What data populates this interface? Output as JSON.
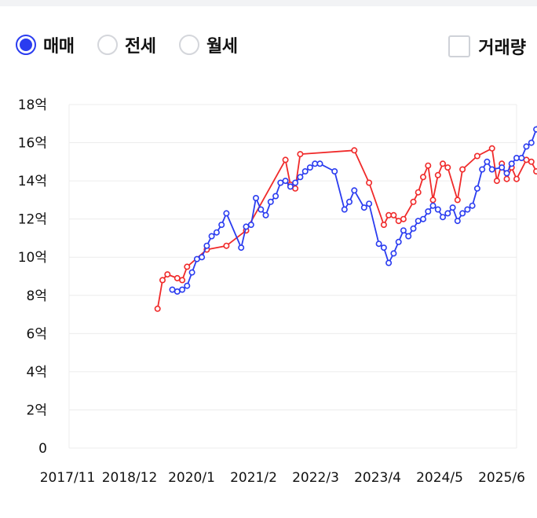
{
  "controls": {
    "trade_types": [
      {
        "label": "매매",
        "selected": true
      },
      {
        "label": "전세",
        "selected": false
      },
      {
        "label": "월세",
        "selected": false
      }
    ],
    "volume_toggle": {
      "label": "거래량",
      "checked": false
    }
  },
  "colors": {
    "accent": "#2a3cf0",
    "blue_series": "#2a3cf0",
    "red_series": "#f02a2a",
    "grid": "#ececec"
  },
  "chart_data": {
    "type": "line",
    "title": "",
    "xlabel": "",
    "ylabel": "",
    "x_tick_labels": [
      "2017/11",
      "2018/12",
      "2020/1",
      "2021/2",
      "2022/3",
      "2023/4",
      "2024/5",
      "2025/6"
    ],
    "y_tick_labels": [
      "0",
      "2억",
      "4억",
      "6억",
      "8억",
      "10억",
      "12억",
      "14억",
      "16억",
      "18억"
    ],
    "y_unit": "억",
    "ylim": [
      0,
      18
    ],
    "xlim": [
      "2017-11",
      "2025-06"
    ],
    "grid": true,
    "series": [
      {
        "color": "#f02a2a",
        "points": [
          [
            "2019-05",
            7.3
          ],
          [
            "2019-06",
            8.8
          ],
          [
            "2019-07",
            9.1
          ],
          [
            "2019-09",
            8.9
          ],
          [
            "2019-10",
            8.8
          ],
          [
            "2019-11",
            9.5
          ],
          [
            "2020-03",
            10.4
          ],
          [
            "2020-07",
            10.6
          ],
          [
            "2020-11",
            11.4
          ],
          [
            "2021-07",
            15.1
          ],
          [
            "2021-08",
            13.8
          ],
          [
            "2021-09",
            13.6
          ],
          [
            "2021-10",
            15.4
          ],
          [
            "2022-09",
            15.6
          ],
          [
            "2022-12",
            13.9
          ],
          [
            "2023-03",
            11.7
          ],
          [
            "2023-04",
            12.2
          ],
          [
            "2023-05",
            12.2
          ],
          [
            "2023-06",
            11.9
          ],
          [
            "2023-07",
            12.0
          ],
          [
            "2023-09",
            12.9
          ],
          [
            "2023-10",
            13.4
          ],
          [
            "2023-11",
            14.2
          ],
          [
            "2023-12",
            14.8
          ],
          [
            "2024-01",
            13.0
          ],
          [
            "2024-02",
            14.3
          ],
          [
            "2024-03",
            14.9
          ],
          [
            "2024-04",
            14.7
          ],
          [
            "2024-06",
            13.0
          ],
          [
            "2024-07",
            14.6
          ],
          [
            "2024-10",
            15.3
          ],
          [
            "2025-01",
            15.7
          ],
          [
            "2025-02",
            14.0
          ],
          [
            "2025-03",
            14.9
          ],
          [
            "2025-04",
            14.1
          ],
          [
            "2025-05",
            14.7
          ],
          [
            "2025-06",
            14.1
          ],
          [
            "2025-08",
            15.1
          ],
          [
            "2025-09",
            15.0
          ],
          [
            "2025-10",
            14.5
          ],
          [
            "2025-11",
            15.1
          ]
        ]
      },
      {
        "color": "#2a3cf0",
        "points": [
          [
            "2019-08",
            8.3
          ],
          [
            "2019-09",
            8.2
          ],
          [
            "2019-10",
            8.3
          ],
          [
            "2019-11",
            8.5
          ],
          [
            "2019-12",
            9.2
          ],
          [
            "2020-01",
            9.9
          ],
          [
            "2020-02",
            10.0
          ],
          [
            "2020-03",
            10.6
          ],
          [
            "2020-04",
            11.1
          ],
          [
            "2020-05",
            11.3
          ],
          [
            "2020-06",
            11.7
          ],
          [
            "2020-07",
            12.3
          ],
          [
            "2020-10",
            10.5
          ],
          [
            "2020-11",
            11.6
          ],
          [
            "2020-12",
            11.7
          ],
          [
            "2021-01",
            13.1
          ],
          [
            "2021-02",
            12.5
          ],
          [
            "2021-03",
            12.2
          ],
          [
            "2021-04",
            12.9
          ],
          [
            "2021-05",
            13.2
          ],
          [
            "2021-06",
            13.9
          ],
          [
            "2021-07",
            14.0
          ],
          [
            "2021-08",
            13.7
          ],
          [
            "2021-09",
            13.9
          ],
          [
            "2021-10",
            14.2
          ],
          [
            "2021-11",
            14.5
          ],
          [
            "2021-12",
            14.7
          ],
          [
            "2022-01",
            14.9
          ],
          [
            "2022-02",
            14.9
          ],
          [
            "2022-05",
            14.5
          ],
          [
            "2022-07",
            12.5
          ],
          [
            "2022-08",
            12.9
          ],
          [
            "2022-09",
            13.5
          ],
          [
            "2022-11",
            12.6
          ],
          [
            "2022-12",
            12.8
          ],
          [
            "2023-02",
            10.7
          ],
          [
            "2023-03",
            10.5
          ],
          [
            "2023-04",
            9.7
          ],
          [
            "2023-05",
            10.2
          ],
          [
            "2023-06",
            10.8
          ],
          [
            "2023-07",
            11.4
          ],
          [
            "2023-08",
            11.1
          ],
          [
            "2023-09",
            11.5
          ],
          [
            "2023-10",
            11.9
          ],
          [
            "2023-11",
            12.0
          ],
          [
            "2023-12",
            12.4
          ],
          [
            "2024-01",
            12.7
          ],
          [
            "2024-02",
            12.5
          ],
          [
            "2024-03",
            12.1
          ],
          [
            "2024-04",
            12.3
          ],
          [
            "2024-05",
            12.6
          ],
          [
            "2024-06",
            11.9
          ],
          [
            "2024-07",
            12.3
          ],
          [
            "2024-08",
            12.5
          ],
          [
            "2024-09",
            12.7
          ],
          [
            "2024-10",
            13.6
          ],
          [
            "2024-11",
            14.6
          ],
          [
            "2024-12",
            15.0
          ],
          [
            "2025-01",
            14.6
          ],
          [
            "2025-03",
            14.7
          ],
          [
            "2025-04",
            14.4
          ],
          [
            "2025-05",
            14.9
          ],
          [
            "2025-06",
            15.2
          ],
          [
            "2025-07",
            15.2
          ],
          [
            "2025-08",
            15.8
          ],
          [
            "2025-09",
            16.0
          ],
          [
            "2025-10",
            16.7
          ],
          [
            "2025-11",
            17.4
          ]
        ]
      }
    ]
  }
}
